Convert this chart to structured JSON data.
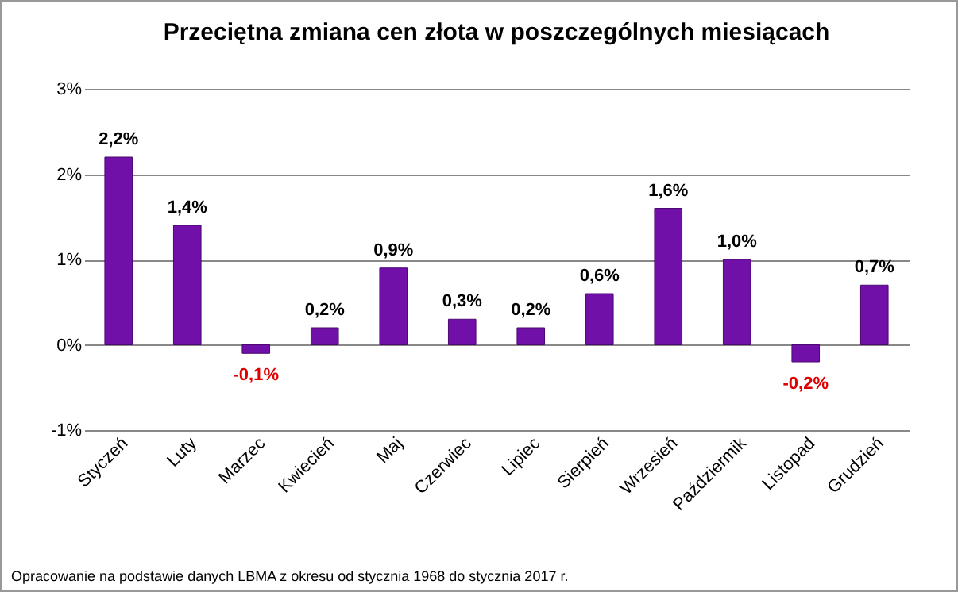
{
  "chart_data": {
    "type": "bar",
    "title": "Przeciętna zmiana cen złota w poszczególnych miesiącach",
    "categories": [
      "Styczeń",
      "Luty",
      "Marzec",
      "Kwiecień",
      "Maj",
      "Czerwiec",
      "Lipiec",
      "Sierpień",
      "Wrzesień",
      "Paździermik",
      "Listopad",
      "Grudzień"
    ],
    "values": [
      2.2,
      1.4,
      -0.1,
      0.2,
      0.9,
      0.3,
      0.2,
      0.6,
      1.6,
      1.0,
      -0.2,
      0.7
    ],
    "value_labels": [
      "2,2%",
      "1,4%",
      "-0,1%",
      "0,2%",
      "0,9%",
      "0,3%",
      "0,2%",
      "0,6%",
      "1,6%",
      "1,0%",
      "-0,2%",
      "0,7%"
    ],
    "color": "#7010a8",
    "ylim": [
      -1,
      3
    ],
    "yticks": [
      {
        "value": -1,
        "label": "-1%"
      },
      {
        "value": 0,
        "label": "0%"
      },
      {
        "value": 1,
        "label": "1%"
      },
      {
        "value": 2,
        "label": "2%"
      },
      {
        "value": 3,
        "label": "3%"
      }
    ],
    "grid": "y",
    "annotations": [
      "Opracowanie na podstawie danych LBMA z okresu od stycznia 1968 do stycznia  2017 r."
    ]
  }
}
